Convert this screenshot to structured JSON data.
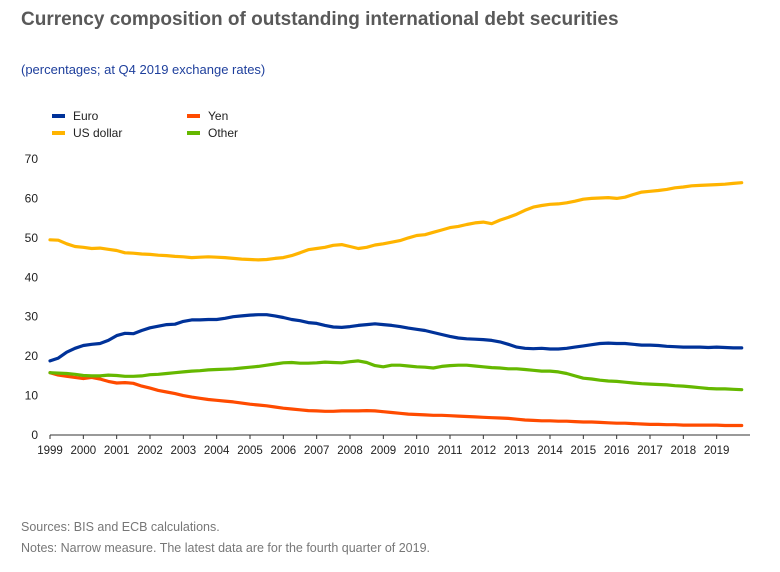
{
  "header": {
    "title": "Currency composition of outstanding international debt securities",
    "subtitle": "(percentages; at Q4 2019 exchange rates)"
  },
  "footer": {
    "sources": "Sources: BIS and ECB calculations.",
    "notes": "Notes: Narrow measure. The latest data are for the fourth quarter of 2019."
  },
  "chart_data": {
    "type": "line",
    "title": "Currency composition of outstanding international debt securities",
    "subtitle": "(percentages; at Q4 2019 exchange rates)",
    "xlabel": "",
    "ylabel": "",
    "ylim": [
      0,
      70
    ],
    "yticks": [
      0,
      10,
      20,
      30,
      40,
      50,
      60,
      70
    ],
    "xlim": [
      1999.0,
      2020.0
    ],
    "xticks": [
      "1999",
      "2000",
      "2001",
      "2002",
      "2003",
      "2004",
      "2005",
      "2006",
      "2007",
      "2008",
      "2009",
      "2010",
      "2011",
      "2012",
      "2013",
      "2014",
      "2015",
      "2016",
      "2017",
      "2018",
      "2019"
    ],
    "grid": false,
    "legend_position": "top-left",
    "series": [
      {
        "name": "Euro",
        "color": "#003299",
        "x": [
          1999.0,
          1999.25,
          1999.5,
          1999.75,
          2000.0,
          2000.25,
          2000.5,
          2000.75,
          2001.0,
          2001.25,
          2001.5,
          2001.75,
          2002.0,
          2002.25,
          2002.5,
          2002.75,
          2003.0,
          2003.25,
          2003.5,
          2003.75,
          2004.0,
          2004.25,
          2004.5,
          2004.75,
          2005.0,
          2005.25,
          2005.5,
          2005.75,
          2006.0,
          2006.25,
          2006.5,
          2006.75,
          2007.0,
          2007.25,
          2007.5,
          2007.75,
          2008.0,
          2008.25,
          2008.5,
          2008.75,
          2009.0,
          2009.25,
          2009.5,
          2009.75,
          2010.0,
          2010.25,
          2010.5,
          2010.75,
          2011.0,
          2011.25,
          2011.5,
          2011.75,
          2012.0,
          2012.25,
          2012.5,
          2012.75,
          2013.0,
          2013.25,
          2013.5,
          2013.75,
          2014.0,
          2014.25,
          2014.5,
          2014.75,
          2015.0,
          2015.25,
          2015.5,
          2015.75,
          2016.0,
          2016.25,
          2016.5,
          2016.75,
          2017.0,
          2017.25,
          2017.5,
          2017.75,
          2018.0,
          2018.25,
          2018.5,
          2018.75,
          2019.0,
          2019.25,
          2019.5,
          2019.75
        ],
        "values": [
          18.8,
          19.5,
          21.0,
          22.0,
          22.7,
          23.0,
          23.2,
          24.0,
          25.2,
          25.8,
          25.7,
          26.5,
          27.2,
          27.6,
          28.0,
          28.1,
          28.8,
          29.2,
          29.2,
          29.3,
          29.3,
          29.6,
          30.0,
          30.2,
          30.4,
          30.5,
          30.5,
          30.2,
          29.8,
          29.3,
          29.0,
          28.5,
          28.3,
          27.8,
          27.4,
          27.3,
          27.5,
          27.8,
          28.0,
          28.2,
          28.0,
          27.8,
          27.5,
          27.1,
          26.8,
          26.5,
          26.0,
          25.5,
          25.0,
          24.6,
          24.4,
          24.3,
          24.2,
          24.0,
          23.6,
          23.0,
          22.3,
          22.0,
          21.9,
          22.0,
          21.8,
          21.8,
          22.0,
          22.3,
          22.6,
          22.9,
          23.2,
          23.3,
          23.2,
          23.2,
          23.0,
          22.8,
          22.8,
          22.7,
          22.5,
          22.4,
          22.3,
          22.3,
          22.3,
          22.2,
          22.3,
          22.2,
          22.1,
          22.1
        ]
      },
      {
        "name": "US dollar",
        "color": "#ffb400",
        "x": [
          1999.0,
          1999.25,
          1999.5,
          1999.75,
          2000.0,
          2000.25,
          2000.5,
          2000.75,
          2001.0,
          2001.25,
          2001.5,
          2001.75,
          2002.0,
          2002.25,
          2002.5,
          2002.75,
          2003.0,
          2003.25,
          2003.5,
          2003.75,
          2004.0,
          2004.25,
          2004.5,
          2004.75,
          2005.0,
          2005.25,
          2005.5,
          2005.75,
          2006.0,
          2006.25,
          2006.5,
          2006.75,
          2007.0,
          2007.25,
          2007.5,
          2007.75,
          2008.0,
          2008.25,
          2008.5,
          2008.75,
          2009.0,
          2009.25,
          2009.5,
          2009.75,
          2010.0,
          2010.25,
          2010.5,
          2010.75,
          2011.0,
          2011.25,
          2011.5,
          2011.75,
          2012.0,
          2012.25,
          2012.5,
          2012.75,
          2013.0,
          2013.25,
          2013.5,
          2013.75,
          2014.0,
          2014.25,
          2014.5,
          2014.75,
          2015.0,
          2015.25,
          2015.5,
          2015.75,
          2016.0,
          2016.25,
          2016.5,
          2016.75,
          2017.0,
          2017.25,
          2017.5,
          2017.75,
          2018.0,
          2018.25,
          2018.5,
          2018.75,
          2019.0,
          2019.25,
          2019.5,
          2019.75
        ],
        "values": [
          49.5,
          49.4,
          48.5,
          47.8,
          47.6,
          47.3,
          47.4,
          47.1,
          46.8,
          46.2,
          46.1,
          45.9,
          45.8,
          45.6,
          45.5,
          45.3,
          45.2,
          45.0,
          45.1,
          45.2,
          45.1,
          45.0,
          44.8,
          44.6,
          44.5,
          44.4,
          44.5,
          44.8,
          45.0,
          45.5,
          46.2,
          47.0,
          47.3,
          47.6,
          48.1,
          48.3,
          47.8,
          47.3,
          47.6,
          48.2,
          48.5,
          48.9,
          49.3,
          50.0,
          50.6,
          50.8,
          51.4,
          52.0,
          52.6,
          52.9,
          53.4,
          53.8,
          54.0,
          53.6,
          54.5,
          55.2,
          56.0,
          57.0,
          57.8,
          58.2,
          58.5,
          58.6,
          58.9,
          59.3,
          59.8,
          60.0,
          60.1,
          60.2,
          60.0,
          60.3,
          61.0,
          61.6,
          61.8,
          62.0,
          62.3,
          62.7,
          62.9,
          63.2,
          63.3,
          63.4,
          63.5,
          63.6,
          63.8,
          64.0
        ]
      },
      {
        "name": "Yen",
        "color": "#ff4b00",
        "x": [
          1999.0,
          1999.25,
          1999.5,
          1999.75,
          2000.0,
          2000.25,
          2000.5,
          2000.75,
          2001.0,
          2001.25,
          2001.5,
          2001.75,
          2002.0,
          2002.25,
          2002.5,
          2002.75,
          2003.0,
          2003.25,
          2003.5,
          2003.75,
          2004.0,
          2004.25,
          2004.5,
          2004.75,
          2005.0,
          2005.25,
          2005.5,
          2005.75,
          2006.0,
          2006.25,
          2006.5,
          2006.75,
          2007.0,
          2007.25,
          2007.5,
          2007.75,
          2008.0,
          2008.25,
          2008.5,
          2008.75,
          2009.0,
          2009.25,
          2009.5,
          2009.75,
          2010.0,
          2010.25,
          2010.5,
          2010.75,
          2011.0,
          2011.25,
          2011.5,
          2011.75,
          2012.0,
          2012.25,
          2012.5,
          2012.75,
          2013.0,
          2013.25,
          2013.5,
          2013.75,
          2014.0,
          2014.25,
          2014.5,
          2014.75,
          2015.0,
          2015.25,
          2015.5,
          2015.75,
          2016.0,
          2016.25,
          2016.5,
          2016.75,
          2017.0,
          2017.25,
          2017.5,
          2017.75,
          2018.0,
          2018.25,
          2018.5,
          2018.75,
          2019.0,
          2019.25,
          2019.5,
          2019.75
        ],
        "values": [
          15.8,
          15.2,
          14.9,
          14.6,
          14.3,
          14.6,
          14.2,
          13.6,
          13.2,
          13.3,
          13.1,
          12.4,
          11.9,
          11.3,
          10.9,
          10.5,
          10.0,
          9.6,
          9.3,
          9.0,
          8.8,
          8.6,
          8.4,
          8.1,
          7.8,
          7.6,
          7.4,
          7.1,
          6.8,
          6.6,
          6.4,
          6.2,
          6.1,
          6.0,
          6.0,
          6.1,
          6.1,
          6.1,
          6.2,
          6.1,
          5.9,
          5.7,
          5.5,
          5.3,
          5.2,
          5.1,
          5.0,
          5.0,
          4.9,
          4.8,
          4.7,
          4.6,
          4.5,
          4.4,
          4.3,
          4.2,
          4.0,
          3.8,
          3.7,
          3.6,
          3.6,
          3.5,
          3.5,
          3.4,
          3.3,
          3.3,
          3.2,
          3.1,
          3.0,
          3.0,
          2.9,
          2.8,
          2.7,
          2.7,
          2.6,
          2.6,
          2.5,
          2.5,
          2.5,
          2.5,
          2.5,
          2.4,
          2.4,
          2.4
        ]
      },
      {
        "name": "Other",
        "color": "#65b800",
        "x": [
          1999.0,
          1999.25,
          1999.5,
          1999.75,
          2000.0,
          2000.25,
          2000.5,
          2000.75,
          2001.0,
          2001.25,
          2001.5,
          2001.75,
          2002.0,
          2002.25,
          2002.5,
          2002.75,
          2003.0,
          2003.25,
          2003.5,
          2003.75,
          2004.0,
          2004.25,
          2004.5,
          2004.75,
          2005.0,
          2005.25,
          2005.5,
          2005.75,
          2006.0,
          2006.25,
          2006.5,
          2006.75,
          2007.0,
          2007.25,
          2007.5,
          2007.75,
          2008.0,
          2008.25,
          2008.5,
          2008.75,
          2009.0,
          2009.25,
          2009.5,
          2009.75,
          2010.0,
          2010.25,
          2010.5,
          2010.75,
          2011.0,
          2011.25,
          2011.5,
          2011.75,
          2012.0,
          2012.25,
          2012.5,
          2012.75,
          2013.0,
          2013.25,
          2013.5,
          2013.75,
          2014.0,
          2014.25,
          2014.5,
          2014.75,
          2015.0,
          2015.25,
          2015.5,
          2015.75,
          2016.0,
          2016.25,
          2016.5,
          2016.75,
          2017.0,
          2017.25,
          2017.5,
          2017.75,
          2018.0,
          2018.25,
          2018.5,
          2018.75,
          2019.0,
          2019.25,
          2019.5,
          2019.75
        ],
        "values": [
          15.8,
          15.7,
          15.6,
          15.4,
          15.1,
          15.0,
          15.0,
          15.2,
          15.1,
          14.9,
          14.9,
          15.0,
          15.3,
          15.4,
          15.6,
          15.8,
          16.0,
          16.2,
          16.3,
          16.5,
          16.6,
          16.7,
          16.8,
          17.0,
          17.2,
          17.4,
          17.7,
          18.0,
          18.3,
          18.4,
          18.2,
          18.2,
          18.3,
          18.5,
          18.4,
          18.3,
          18.6,
          18.8,
          18.4,
          17.6,
          17.3,
          17.7,
          17.7,
          17.5,
          17.3,
          17.2,
          17.0,
          17.4,
          17.6,
          17.7,
          17.7,
          17.5,
          17.3,
          17.1,
          17.0,
          16.8,
          16.8,
          16.6,
          16.4,
          16.2,
          16.2,
          16.0,
          15.6,
          15.0,
          14.4,
          14.2,
          13.9,
          13.7,
          13.6,
          13.4,
          13.2,
          13.0,
          12.9,
          12.8,
          12.7,
          12.5,
          12.4,
          12.2,
          12.0,
          11.8,
          11.7,
          11.7,
          11.6,
          11.5
        ]
      }
    ]
  }
}
